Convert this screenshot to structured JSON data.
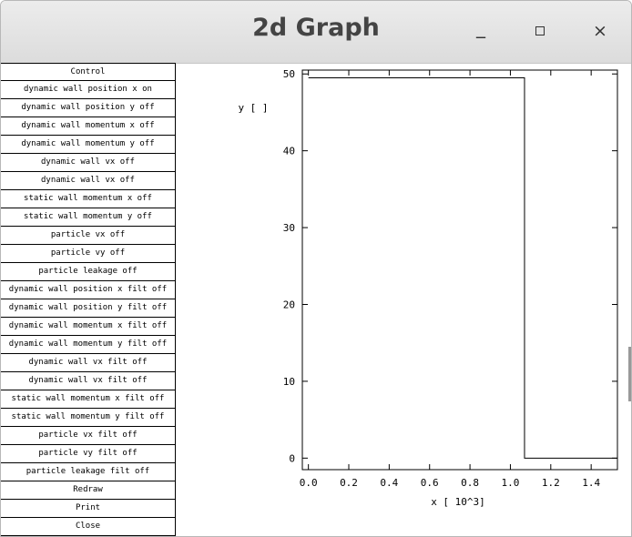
{
  "window": {
    "title": "2d Graph",
    "minimize_label": "_",
    "close_label": "×"
  },
  "sidebar": {
    "buttons": [
      "Control",
      "dynamic wall position x on",
      "dynamic wall position y off",
      "dynamic wall momentum x off",
      "dynamic wall momentum y off",
      "dynamic wall vx  off",
      "dynamic wall vx off",
      "static wall momentum x off",
      "static wall momentum y off",
      "particle vx off",
      "particle vy off",
      "particle leakage off",
      "dynamic wall position x filt off",
      "dynamic wall position y filt off",
      "dynamic wall momentum x filt off",
      "dynamic wall momentum y filt off",
      "dynamic wall vx filt off",
      "dynamic wall vx filt off",
      "static wall momentum x filt off",
      "static wall momentum y filt off",
      "particle vx filt off",
      "particle vy filt off",
      "particle leakage filt off",
      "Redraw",
      "Print",
      "Close"
    ]
  },
  "chart_data": {
    "type": "line",
    "xlabel": "x [ 10^3]",
    "ylabel": "y [ ]",
    "xlim": [
      -0.03,
      1.53
    ],
    "ylim": [
      -1.5,
      50.5
    ],
    "x_ticks": [
      "0.0",
      "0.2",
      "0.4",
      "0.6",
      "0.8",
      "1.0",
      "1.2",
      "1.4"
    ],
    "x_tick_values": [
      0.0,
      0.2,
      0.4,
      0.6,
      0.8,
      1.0,
      1.2,
      1.4
    ],
    "y_ticks": [
      "0",
      "10",
      "20",
      "30",
      "40",
      "50"
    ],
    "y_tick_values": [
      0,
      10,
      20,
      30,
      40,
      50
    ],
    "grid": false,
    "series": [
      {
        "x": [
          0.0,
          1.07,
          1.07,
          1.53
        ],
        "y": [
          49.5,
          49.5,
          0,
          0
        ]
      }
    ]
  }
}
